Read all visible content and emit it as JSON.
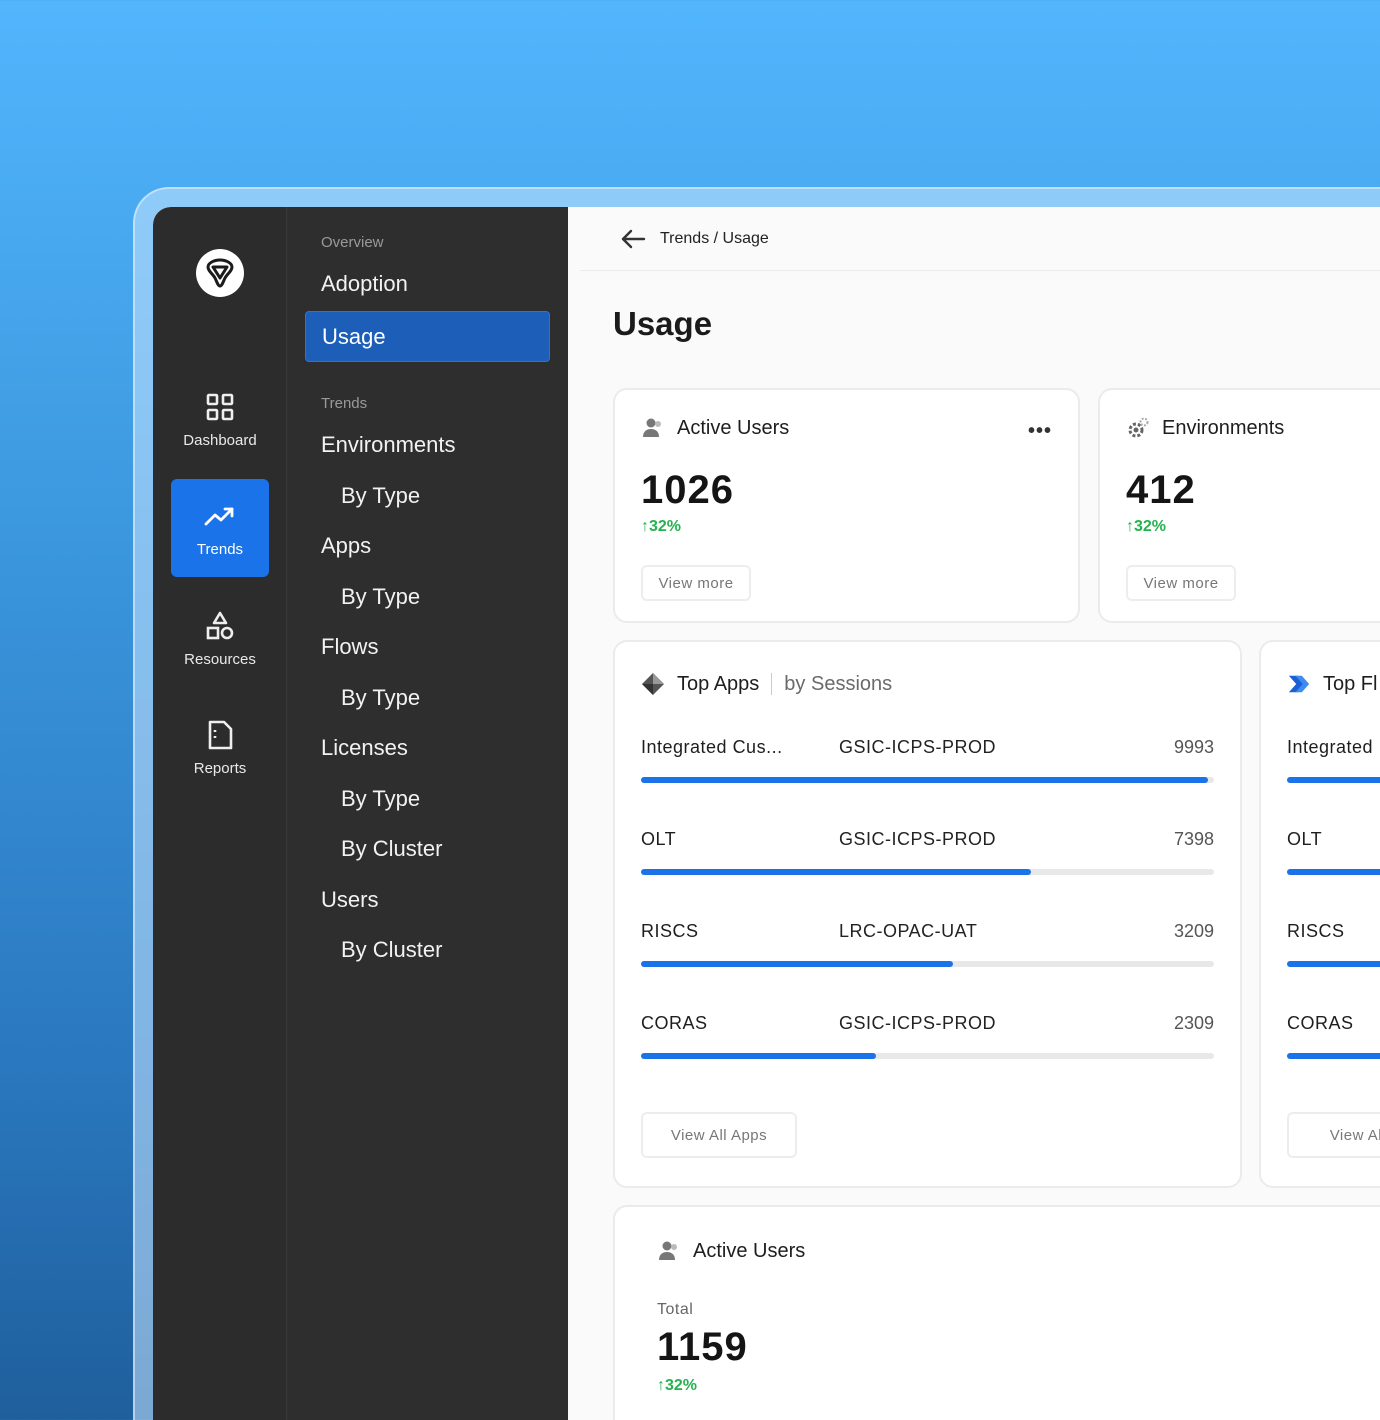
{
  "rail": {
    "items": [
      {
        "label": "Dashboard",
        "icon": "grid-icon",
        "active": false
      },
      {
        "label": "Trends",
        "icon": "trend-up-icon",
        "active": true
      },
      {
        "label": "Resources",
        "icon": "shapes-icon",
        "active": false
      },
      {
        "label": "Reports",
        "icon": "document-icon",
        "active": false
      }
    ]
  },
  "subnav": {
    "overview_heading": "Overview",
    "adoption": "Adoption",
    "usage": "Usage",
    "trends_heading": "Trends",
    "environments": "Environments",
    "environments_by_type": "By Type",
    "apps": "Apps",
    "apps_by_type": "By Type",
    "flows": "Flows",
    "flows_by_type": "By Type",
    "licenses": "Licenses",
    "licenses_by_type": "By Type",
    "licenses_by_cluster": "By Cluster",
    "users": "Users",
    "users_by_cluster": "By Cluster"
  },
  "breadcrumb": "Trends / Usage",
  "page_title": "Usage",
  "cards": {
    "active_users": {
      "title": "Active Users",
      "value": "1026",
      "delta": "32%",
      "button": "View more"
    },
    "environments": {
      "title": "Environments",
      "value": "412",
      "delta": "32%",
      "button": "View more"
    },
    "top_apps": {
      "title": "Top Apps",
      "subtitle": "by Sessions",
      "rows": [
        {
          "name": "Integrated  Cus...",
          "env": "GSIC-ICPS-PROD",
          "value": "9993",
          "fill": 0.99
        },
        {
          "name": "OLT",
          "env": "GSIC-ICPS-PROD",
          "value": "7398",
          "fill": 0.68
        },
        {
          "name": "RISCS",
          "env": "LRC-OPAC-UAT",
          "value": "3209",
          "fill": 0.545
        },
        {
          "name": "CORAS",
          "env": "GSIC-ICPS-PROD",
          "value": "2309",
          "fill": 0.41
        }
      ],
      "button": "View All Apps"
    },
    "top_flows": {
      "title": "Top Fl",
      "rows": [
        "Integrated",
        "OLT",
        "RISCS",
        "CORAS"
      ],
      "button": "View All F"
    },
    "active_users_total": {
      "title": "Active Users",
      "label": "Total",
      "value": "1159",
      "delta": "32%"
    }
  },
  "colors": {
    "accent": "#1a73e8",
    "positive": "#24b24f",
    "sidebar": "#2c2c2c"
  }
}
